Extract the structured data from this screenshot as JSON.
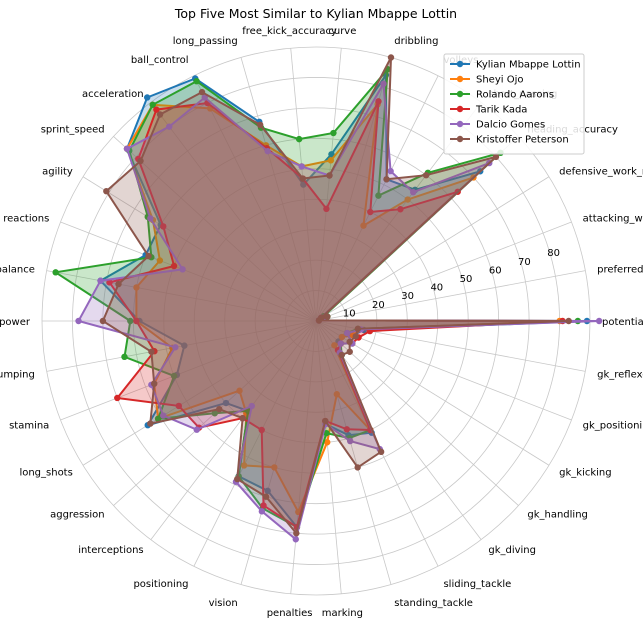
{
  "chart_data": {
    "type": "radar",
    "title": "Top Five Most Similar to Kylian Mbappe Lottin",
    "axes": [
      "potential",
      "preferred_foot",
      "attacking_work_rate",
      "defensive_work_rate",
      "heading_accuracy",
      "short_passing",
      "volleys",
      "dribbling",
      "curve",
      "free_kick_accuracy",
      "long_passing",
      "ball_control",
      "acceleration",
      "sprint_speed",
      "agility",
      "reactions",
      "balance",
      "shot_power",
      "jumping",
      "stamina",
      "long_shots",
      "aggression",
      "interceptions",
      "positioning",
      "vision",
      "penalties",
      "marking",
      "standing_tackle",
      "sliding_tackle",
      "gk_diving",
      "gk_handling",
      "gk_kicking",
      "gk_positioning",
      "gk_reflexes"
    ],
    "radial_ticks": [
      "10",
      "20",
      "30",
      "40",
      "50",
      "60",
      "70",
      "80"
    ],
    "rlim": [
      0,
      90
    ],
    "grid": true,
    "legend_position": "top-right",
    "series": [
      {
        "name": "Kylian Mbappe Lottin",
        "color": "#1f77b4",
        "values": [
          89,
          1,
          3,
          2,
          73,
          54,
          52,
          84,
          55,
          45,
          68,
          89,
          92,
          84,
          60,
          60,
          72,
          58,
          44,
          49,
          65,
          40,
          37,
          57,
          58,
          68,
          34,
          39,
          41,
          14,
          10,
          10,
          13,
          16
        ]
      },
      {
        "name": "Sheyi Ojo",
        "color": "#ff7f0e",
        "values": [
          80,
          1,
          3,
          2,
          70,
          50,
          35,
          74,
          53,
          51,
          60,
          78,
          89,
          84,
          63,
          55,
          60,
          59,
          48,
          57,
          61,
          34,
          38,
          53,
          50,
          63,
          40,
          25,
          40,
          10,
          11,
          10,
          13,
          15
        ]
      },
      {
        "name": "Rolando Aarons",
        "color": "#2ca02c",
        "values": [
          86,
          1,
          4,
          3,
          82,
          61,
          46,
          86,
          62,
          60,
          66,
          88,
          89,
          83,
          65,
          58,
          87,
          61,
          64,
          50,
          61,
          45,
          37,
          57,
          64,
          68,
          37,
          40,
          40,
          14,
          11,
          14,
          11,
          14
        ]
      },
      {
        "name": "Tarik Kada",
        "color": "#d62728",
        "values": [
          81,
          1,
          3,
          2,
          63,
          46,
          40,
          75,
          37,
          47,
          59,
          80,
          87,
          79,
          59,
          50,
          69,
          59,
          54,
          70,
          53,
          52,
          40,
          40,
          63,
          68,
          33,
          37,
          40,
          12,
          11,
          14,
          15,
          18
        ]
      },
      {
        "name": "Dalcio Gomes",
        "color": "#9467bd",
        "values": [
          93,
          1,
          3,
          2,
          77,
          53,
          55,
          81,
          48,
          51,
          58,
          82,
          80,
          84,
          64,
          47,
          72,
          78,
          47,
          58,
          59,
          53,
          35,
          59,
          65,
          72,
          34,
          41,
          47,
          13,
          11,
          14,
          11,
          15
        ]
      },
      {
        "name": "Kristoffer Peterson",
        "color": "#8c564b",
        "values": [
          83,
          1,
          4,
          2,
          80,
          60,
          52,
          90,
          48,
          47,
          67,
          84,
          85,
          78,
          81,
          59,
          66,
          70,
          55,
          57,
          64,
          43,
          40,
          58,
          60,
          70,
          33,
          50,
          48,
          14,
          15,
          13,
          14,
          14
        ]
      }
    ]
  }
}
